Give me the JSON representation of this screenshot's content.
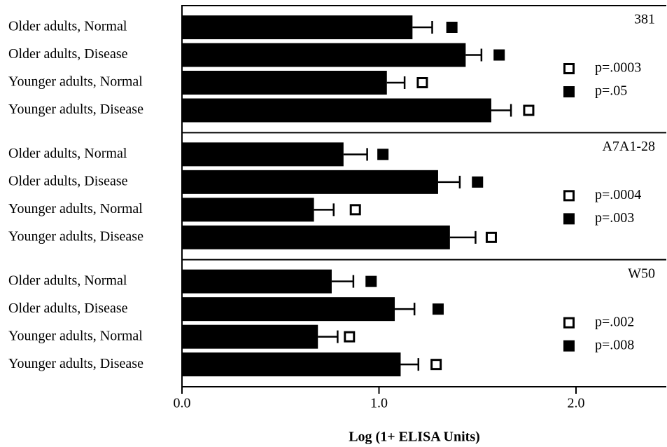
{
  "chart_data": [
    {
      "type": "bar",
      "title": "381",
      "categories": [
        "Older adults, Normal",
        "Older adults, Disease",
        "Younger adults, Normal",
        "Younger adults, Disease"
      ],
      "values": [
        1.17,
        1.44,
        1.04,
        1.57
      ],
      "errors": [
        0.1,
        0.08,
        0.09,
        0.1
      ],
      "markers": {
        "values": [
          1.37,
          1.61,
          1.22,
          1.76
        ],
        "styles": [
          "filled",
          "filled",
          "open",
          "open"
        ]
      },
      "legend": [
        {
          "symbol": "open",
          "label": "p=.0003"
        },
        {
          "symbol": "filled",
          "label": "p=.05"
        }
      ],
      "color": "#000000",
      "xlim": [
        0,
        2.45
      ]
    },
    {
      "type": "bar",
      "title": "A7A1-28",
      "categories": [
        "Older adults, Normal",
        "Older adults, Disease",
        "Younger adults, Normal",
        "Younger adults, Disease"
      ],
      "values": [
        0.82,
        1.3,
        0.67,
        1.36
      ],
      "errors": [
        0.12,
        0.11,
        0.1,
        0.13
      ],
      "markers": {
        "values": [
          1.02,
          1.5,
          0.88,
          1.57
        ],
        "styles": [
          "filled",
          "filled",
          "open",
          "open"
        ]
      },
      "legend": [
        {
          "symbol": "open",
          "label": "p=.0004"
        },
        {
          "symbol": "filled",
          "label": "p=.003"
        }
      ],
      "color": "#000000",
      "xlim": [
        0,
        2.45
      ]
    },
    {
      "type": "bar",
      "title": "W50",
      "categories": [
        "Older adults, Normal",
        "Older adults, Disease",
        "Younger adults, Normal",
        "Younger adults, Disease"
      ],
      "values": [
        0.76,
        1.08,
        0.69,
        1.11
      ],
      "errors": [
        0.11,
        0.1,
        0.1,
        0.09
      ],
      "markers": {
        "values": [
          0.96,
          1.3,
          0.85,
          1.29
        ],
        "styles": [
          "filled",
          "filled",
          "open",
          "open"
        ]
      },
      "legend": [
        {
          "symbol": "open",
          "label": "p=.002"
        },
        {
          "symbol": "filled",
          "label": "p=.008"
        }
      ],
      "color": "#000000",
      "xlim": [
        0,
        2.45
      ],
      "xlabel": "Log (1+ ELISA Units)",
      "xticks": [
        {
          "value": 0,
          "label": "0.0"
        },
        {
          "value": 1,
          "label": "1.0"
        },
        {
          "value": 2,
          "label": "2.0"
        }
      ]
    }
  ]
}
